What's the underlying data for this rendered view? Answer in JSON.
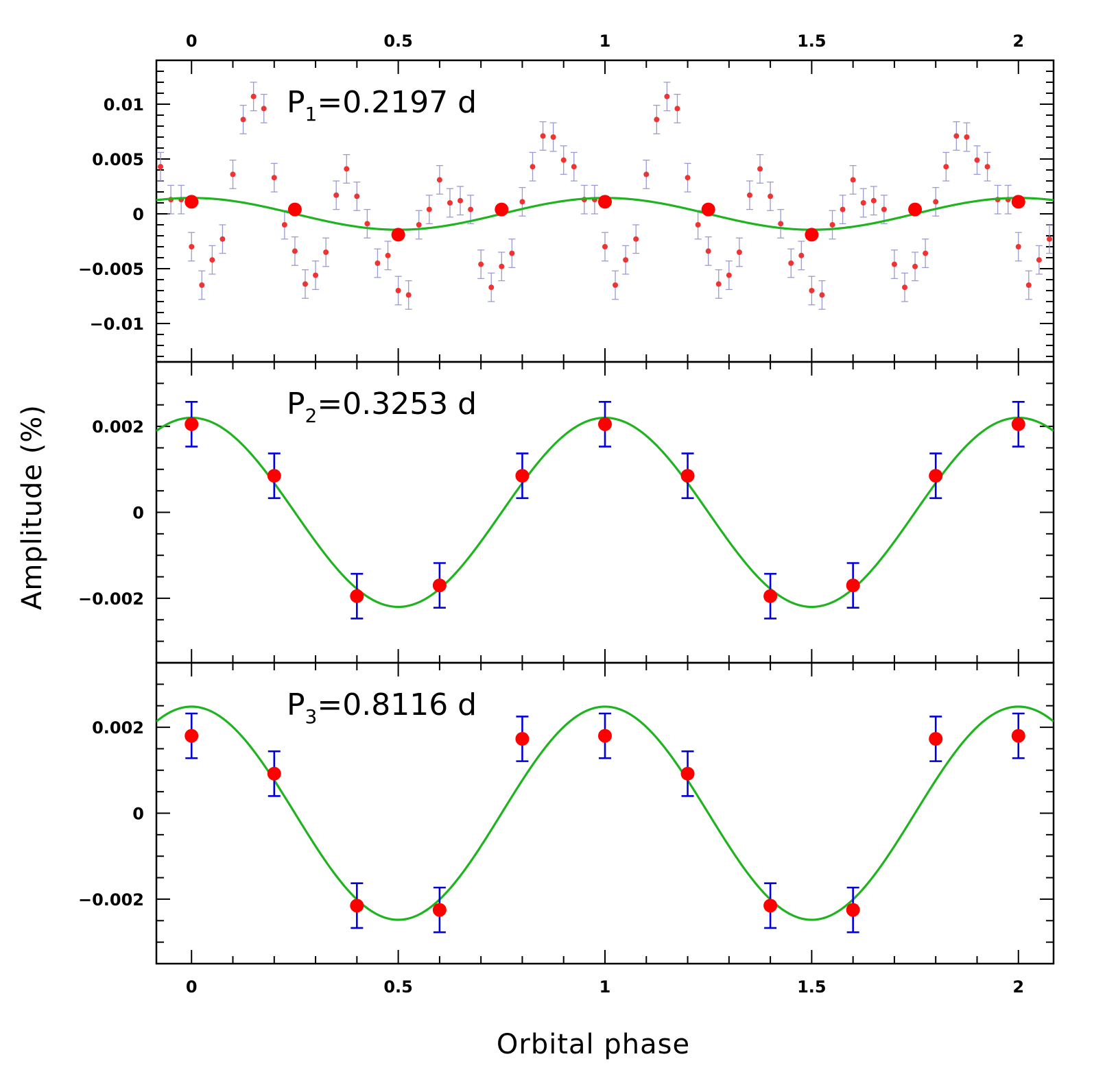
{
  "chart_data": [
    {
      "type": "scatter",
      "label": {
        "main": "P",
        "sub": "1",
        "rest": "=0.2197 d"
      },
      "xlim": [
        -0.085,
        2.085
      ],
      "ylim": [
        -0.0135,
        0.014
      ],
      "yticks": [
        {
          "v": 0.01,
          "t": "0.01"
        },
        {
          "v": 0.005,
          "t": "0.005"
        },
        {
          "v": 0,
          "t": "0"
        },
        {
          "v": -0.005,
          "t": "−0.005"
        },
        {
          "v": -0.01,
          "t": "−0.01"
        }
      ],
      "yminor_step": 0.001,
      "colors": {
        "marker": "#ff0000",
        "small_marker": "#ee3333",
        "errorbar": "#9a9ad2",
        "fit": "#1fb31f"
      },
      "fit": {
        "amplitude": 0.00145,
        "offset": 0,
        "period": 1,
        "phase0": 0
      },
      "binned": {
        "x": [
          0,
          0.25,
          0.5,
          0.75,
          1,
          1.25,
          1.5,
          1.75,
          2
        ],
        "y": [
          0.0011,
          0.0004,
          -0.0019,
          0.0004,
          0.0011,
          0.0004,
          -0.0019,
          0.0004,
          0.0011
        ]
      },
      "points": {
        "x": [
          0.0,
          0.025,
          0.05,
          0.075,
          0.1,
          0.125,
          0.15,
          0.175,
          0.2,
          0.225,
          0.25,
          0.275,
          0.3,
          0.325,
          0.35,
          0.375,
          0.4,
          0.425,
          0.45,
          0.475,
          0.5,
          0.525,
          0.55,
          0.575,
          0.6,
          0.625,
          0.65,
          0.675,
          0.7,
          0.725,
          0.75,
          0.775,
          0.8,
          0.825,
          0.85,
          0.875,
          0.9,
          0.925,
          0.95,
          0.975
        ],
        "y": [
          -0.003,
          -0.0065,
          -0.0042,
          -0.0023,
          0.0036,
          0.0086,
          0.0107,
          0.0096,
          0.0033,
          -0.001,
          -0.0034,
          -0.0064,
          -0.0056,
          -0.0035,
          0.0017,
          0.0041,
          0.0016,
          -0.0009,
          -0.0045,
          -0.0038,
          -0.007,
          -0.0074,
          -0.001,
          0.0004,
          0.0031,
          0.001,
          0.0012,
          0.0004,
          -0.0046,
          -0.0067,
          -0.0048,
          -0.0036,
          0.0011,
          0.0043,
          0.0071,
          0.007,
          0.0049,
          0.0043,
          0.0013,
          0.0013
        ],
        "err": 0.0013,
        "repeat_period": 1
      }
    },
    {
      "type": "scatter",
      "label": {
        "main": "P",
        "sub": "2",
        "rest": "=0.3253 d"
      },
      "xlim": [
        -0.085,
        2.085
      ],
      "ylim": [
        -0.0035,
        0.0035
      ],
      "yticks": [
        {
          "v": 0.002,
          "t": "0.002"
        },
        {
          "v": 0,
          "t": "0"
        },
        {
          "v": -0.002,
          "t": "−0.002"
        }
      ],
      "yminor_step": 0.0005,
      "colors": {
        "marker": "#ff0000",
        "errorbar": "#0000dd",
        "fit": "#1fb31f"
      },
      "fit": {
        "amplitude": 0.0022,
        "offset": 0,
        "period": 1,
        "phase0": 0
      },
      "binned": {
        "x": [
          0,
          0.2,
          0.4,
          0.6,
          0.8,
          1,
          1.2,
          1.4,
          1.6,
          1.8,
          2
        ],
        "y": [
          0.00205,
          0.00085,
          -0.00195,
          -0.0017,
          0.00085,
          0.00205,
          0.00085,
          -0.00195,
          -0.0017,
          0.00085,
          0.00205
        ],
        "err": 0.00052
      }
    },
    {
      "type": "scatter",
      "label": {
        "main": "P",
        "sub": "3",
        "rest": "=0.8116 d"
      },
      "xlim": [
        -0.085,
        2.085
      ],
      "ylim": [
        -0.0035,
        0.0035
      ],
      "yticks": [
        {
          "v": 0.002,
          "t": "0.002"
        },
        {
          "v": 0,
          "t": "0"
        },
        {
          "v": -0.002,
          "t": "−0.002"
        }
      ],
      "yminor_step": 0.0005,
      "colors": {
        "marker": "#ff0000",
        "errorbar": "#0000dd",
        "fit": "#1fb31f"
      },
      "fit": {
        "amplitude": 0.00248,
        "offset": 0,
        "period": 1,
        "phase0": 0
      },
      "binned": {
        "x": [
          0,
          0.2,
          0.4,
          0.6,
          0.8,
          1,
          1.2,
          1.4,
          1.6,
          1.8,
          2
        ],
        "y": [
          0.0018,
          0.00092,
          -0.00215,
          -0.00225,
          0.00173,
          0.0018,
          0.00092,
          -0.00215,
          -0.00225,
          0.00173,
          0.0018
        ],
        "err": 0.00052
      }
    }
  ],
  "xaxis": {
    "ticks": [
      {
        "v": 0,
        "t": "0"
      },
      {
        "v": 0.5,
        "t": "0.5"
      },
      {
        "v": 1,
        "t": "1"
      },
      {
        "v": 1.5,
        "t": "1.5"
      },
      {
        "v": 2,
        "t": "2"
      }
    ],
    "minor_step": 0.1,
    "label": "Orbital phase"
  },
  "yaxis_label": "Amplitude (%)"
}
